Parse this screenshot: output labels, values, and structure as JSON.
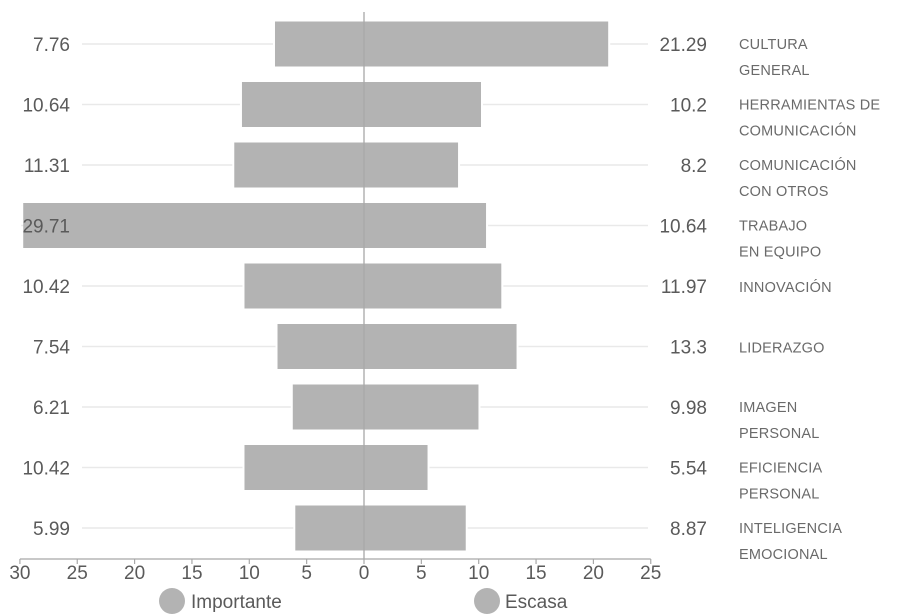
{
  "chart_data": {
    "type": "bar",
    "orientation": "horizontal-diverging",
    "categories": [
      [
        "CULTURA",
        "GENERAL"
      ],
      [
        "HERRAMIENTAS DE",
        "COMUNICACIÓN"
      ],
      [
        "COMUNICACIÓN",
        "CON OTROS"
      ],
      [
        "TRABAJO",
        "EN EQUIPO"
      ],
      [
        "INNOVACIÓN"
      ],
      [
        "LIDERAZGO"
      ],
      [
        "IMAGEN",
        "PERSONAL"
      ],
      [
        "EFICIENCIA",
        "PERSONAL"
      ],
      [
        "INTELIGENCIA",
        "EMOCIONAL"
      ]
    ],
    "series": [
      {
        "name": "Importante",
        "side": "left",
        "values": [
          7.76,
          10.64,
          11.31,
          29.71,
          10.42,
          7.54,
          6.21,
          10.42,
          5.99
        ],
        "labels": [
          "7.76",
          "10.64",
          "11.31",
          "29.71",
          "10.42",
          "7.54",
          "6.21",
          "10.42",
          "5.99"
        ]
      },
      {
        "name": "Escasa",
        "side": "right",
        "values": [
          21.29,
          10.2,
          8.2,
          10.64,
          11.97,
          13.3,
          9.98,
          5.54,
          8.87
        ],
        "labels": [
          "21.29",
          "10.2",
          "8.2",
          "10.64",
          "11.97",
          "13.3",
          "9.98",
          "5.54",
          "8.87"
        ]
      }
    ],
    "xlim": [
      -30,
      25
    ],
    "x_ticks": [
      -30,
      -25,
      -20,
      -15,
      -10,
      -5,
      0,
      5,
      10,
      15,
      20,
      25
    ],
    "x_tick_labels": [
      "30",
      "25",
      "20",
      "15",
      "10",
      "5",
      "0",
      "5",
      "10",
      "15",
      "20",
      "25"
    ],
    "bar_color": "#b3b3b3",
    "grid": false,
    "legend": {
      "position": "bottom"
    }
  }
}
